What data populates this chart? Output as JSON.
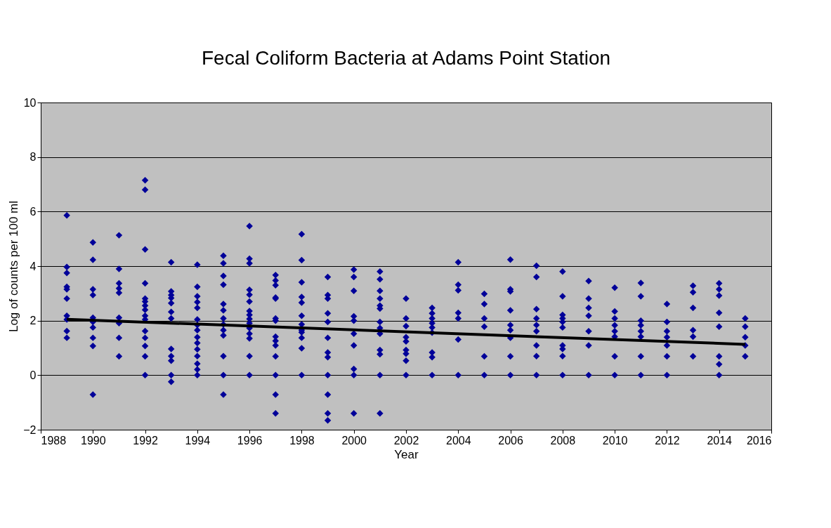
{
  "chart_data": {
    "type": "scatter",
    "title": "Fecal Coliform Bacteria at Adams Point Station",
    "xlabel": "Year",
    "ylabel": "Log of counts per 100 ml",
    "xlim": [
      1988,
      2016
    ],
    "xticks": [
      1988,
      1990,
      1992,
      1994,
      1996,
      1998,
      2000,
      2002,
      2004,
      2006,
      2008,
      2010,
      2012,
      2014,
      2016
    ],
    "ylim": [
      -2,
      10
    ],
    "yticks": [
      -2,
      0,
      2,
      4,
      6,
      8,
      10
    ],
    "grid": "y",
    "series": [
      {
        "color": "#000099",
        "marker": "diamond",
        "x": [
          1989,
          1989,
          1989,
          1989,
          1989,
          1989,
          1989,
          1989,
          1989,
          1989,
          1990,
          1990,
          1990,
          1990,
          1990,
          1990,
          1990,
          1990,
          1990,
          1990,
          1991,
          1991,
          1991,
          1991,
          1991,
          1991,
          1991,
          1991,
          1991,
          1992,
          1992,
          1992,
          1992,
          1992,
          1992,
          1992,
          1992,
          1992,
          1992,
          1992,
          1992,
          1992,
          1992,
          1992,
          1993,
          1993,
          1993,
          1993,
          1993,
          1993,
          1993,
          1993,
          1993,
          1993,
          1993,
          1993,
          1994,
          1994,
          1994,
          1994,
          1994,
          1994,
          1994,
          1994,
          1994,
          1994,
          1994,
          1994,
          1994,
          1994,
          1994,
          1995,
          1995,
          1995,
          1995,
          1995,
          1995,
          1995,
          1995,
          1995,
          1995,
          1995,
          1995,
          1995,
          1996,
          1996,
          1996,
          1996,
          1996,
          1996,
          1996,
          1996,
          1996,
          1996,
          1996,
          1996,
          1996,
          1996,
          1996,
          1997,
          1997,
          1997,
          1997,
          1997,
          1997,
          1997,
          1997,
          1997,
          1997,
          1997,
          1997,
          1997,
          1997,
          1998,
          1998,
          1998,
          1998,
          1998,
          1998,
          1998,
          1998,
          1998,
          1998,
          1998,
          1998,
          1999,
          1999,
          1999,
          1999,
          1999,
          1999,
          1999,
          1999,
          1999,
          1999,
          1999,
          1999,
          2000,
          2000,
          2000,
          2000,
          2000,
          2000,
          2000,
          2000,
          2000,
          2000,
          2001,
          2001,
          2001,
          2001,
          2001,
          2001,
          2001,
          2001,
          2001,
          2001,
          2001,
          2001,
          2001,
          2002,
          2002,
          2002,
          2002,
          2002,
          2002,
          2002,
          2002,
          2002,
          2003,
          2003,
          2003,
          2003,
          2003,
          2003,
          2003,
          2003,
          2003,
          2004,
          2004,
          2004,
          2004,
          2004,
          2004,
          2004,
          2005,
          2005,
          2005,
          2005,
          2005,
          2005,
          2006,
          2006,
          2006,
          2006,
          2006,
          2006,
          2006,
          2006,
          2006,
          2007,
          2007,
          2007,
          2007,
          2007,
          2007,
          2007,
          2007,
          2007,
          2008,
          2008,
          2008,
          2008,
          2008,
          2008,
          2008,
          2008,
          2008,
          2008,
          2009,
          2009,
          2009,
          2009,
          2009,
          2009,
          2009,
          2010,
          2010,
          2010,
          2010,
          2010,
          2010,
          2010,
          2010,
          2011,
          2011,
          2011,
          2011,
          2011,
          2011,
          2011,
          2011,
          2012,
          2012,
          2012,
          2012,
          2012,
          2012,
          2012,
          2013,
          2013,
          2013,
          2013,
          2013,
          2013,
          2014,
          2014,
          2014,
          2014,
          2014,
          2014,
          2014,
          2014,
          2015,
          2015,
          2015,
          2015,
          2015
        ],
        "values": [
          5.86,
          3.97,
          3.75,
          3.24,
          3.15,
          2.81,
          2.18,
          2.04,
          1.62,
          1.37,
          4.87,
          4.23,
          3.15,
          2.94,
          2.11,
          1.95,
          1.75,
          1.37,
          1.07,
          -0.71,
          5.13,
          3.9,
          3.37,
          3.18,
          3.02,
          2.11,
          1.91,
          1.37,
          0.69,
          7.15,
          6.8,
          4.61,
          3.37,
          2.81,
          2.7,
          2.55,
          2.4,
          2.18,
          2.04,
          1.62,
          1.37,
          1.07,
          0.69,
          0,
          4.14,
          3.07,
          2.94,
          2.83,
          2.64,
          2.32,
          2.08,
          0.96,
          0.7,
          0.53,
          0,
          -0.24,
          4.05,
          3.24,
          2.89,
          2.68,
          2.47,
          2.04,
          1.84,
          1.65,
          1.39,
          1.18,
          0.95,
          0.7,
          0.42,
          0.21,
          0,
          4.38,
          4.1,
          3.64,
          3.32,
          2.61,
          2.38,
          2.08,
          1.86,
          1.65,
          1.46,
          0.7,
          0,
          -0.71,
          5.47,
          4.27,
          4.1,
          3.13,
          2.95,
          2.7,
          2.35,
          2.21,
          2.06,
          1.91,
          1.73,
          1.52,
          1.35,
          0.7,
          0,
          3.67,
          3.47,
          3.3,
          2.85,
          2.81,
          2.08,
          2.0,
          1.41,
          1.26,
          1.09,
          0.69,
          0,
          -0.71,
          -1.4,
          5.17,
          4.22,
          3.41,
          2.87,
          2.66,
          2.18,
          1.86,
          1.65,
          1.57,
          1.37,
          0.99,
          0,
          3.6,
          2.94,
          2.81,
          2.27,
          1.95,
          1.37,
          0.83,
          0.66,
          0,
          -0.71,
          -1.4,
          -1.66,
          3.87,
          3.6,
          3.09,
          2.16,
          2.0,
          1.52,
          1.09,
          0.23,
          0,
          -1.4,
          3.8,
          3.52,
          3.09,
          2.81,
          2.55,
          2.44,
          1.95,
          1.73,
          1.52,
          0.92,
          0.77,
          0,
          -1.4,
          2.81,
          2.08,
          1.8,
          1.39,
          1.24,
          0.92,
          0.79,
          0.53,
          0,
          2.47,
          2.27,
          2.08,
          1.91,
          1.75,
          1.56,
          0.83,
          0.66,
          0,
          4.14,
          3.32,
          3.11,
          2.29,
          2.08,
          1.31,
          0,
          2.98,
          2.61,
          2.08,
          1.78,
          0.69,
          0,
          4.24,
          3.15,
          3.07,
          2.38,
          1.84,
          1.65,
          1.37,
          0.69,
          0,
          4.01,
          3.6,
          2.42,
          2.08,
          1.84,
          1.61,
          1.09,
          0.7,
          0,
          3.8,
          2.89,
          2.21,
          2.08,
          1.95,
          1.75,
          1.09,
          0.96,
          0.7,
          0,
          3.45,
          2.81,
          2.47,
          2.18,
          1.61,
          1.09,
          0,
          3.21,
          2.34,
          2.08,
          1.83,
          1.61,
          1.41,
          0.69,
          0,
          3.38,
          2.89,
          2.0,
          1.83,
          1.61,
          1.41,
          0.69,
          0,
          2.61,
          1.95,
          1.61,
          1.39,
          1.09,
          0.69,
          0,
          3.28,
          3.04,
          2.47,
          1.65,
          1.41,
          0.69,
          3.37,
          3.15,
          2.92,
          2.29,
          1.78,
          0.69,
          0.4,
          0,
          2.08,
          1.78,
          1.39,
          1.09,
          0.69
        ]
      },
      {
        "type": "line",
        "marker": "none",
        "color": "#000000",
        "x": [
          1989,
          2015
        ],
        "values": [
          2.05,
          1.13
        ]
      }
    ]
  }
}
